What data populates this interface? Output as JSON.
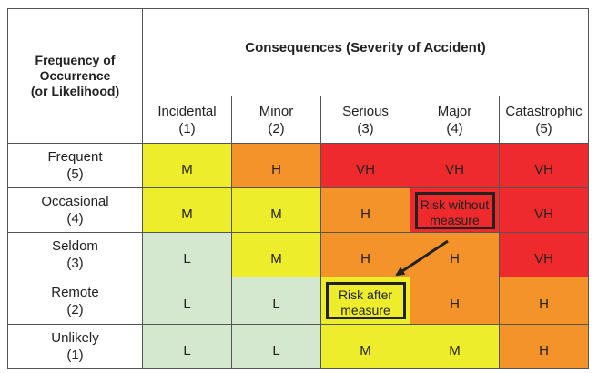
{
  "header": {
    "frequency_title": [
      "Frequency of",
      "Occurrence",
      "(or Likelihood)"
    ],
    "consequences_title": "Consequences (Severity of Accident)"
  },
  "columns": [
    {
      "name": "Incidental",
      "code": "(1)"
    },
    {
      "name": "Minor",
      "code": "(2)"
    },
    {
      "name": "Serious",
      "code": "(3)"
    },
    {
      "name": "Major",
      "code": "(4)"
    },
    {
      "name": "Catastrophic",
      "code": "(5)"
    }
  ],
  "rows": [
    {
      "name": "Frequent",
      "code": "(5)",
      "cells": [
        "M",
        "H",
        "VH",
        "VH",
        "VH"
      ]
    },
    {
      "name": "Occasional",
      "code": "(4)",
      "cells": [
        "M",
        "M",
        "H",
        "",
        "VH"
      ]
    },
    {
      "name": "Seldom",
      "code": "(3)",
      "cells": [
        "L",
        "M",
        "H",
        "H",
        "VH"
      ]
    },
    {
      "name": "Remote",
      "code": "(2)",
      "cells": [
        "L",
        "L",
        "",
        "H",
        "H"
      ]
    },
    {
      "name": "Unlikely",
      "code": "(1)",
      "cells": [
        "L",
        "L",
        "M",
        "M",
        "H"
      ]
    }
  ],
  "annotations": {
    "without": [
      "Risk without",
      "measure"
    ],
    "after": [
      "Risk after",
      "measure"
    ]
  },
  "colors": {
    "L": "#d3e8cf",
    "M": "#eded2b",
    "H": "#f5932b",
    "VH": "#ee2a2c"
  },
  "cell_colors": [
    [
      "M",
      "H",
      "VH",
      "VH",
      "VH"
    ],
    [
      "M",
      "M",
      "H",
      "VH",
      "VH"
    ],
    [
      "L",
      "M",
      "H",
      "H",
      "VH"
    ],
    [
      "L",
      "L",
      "M",
      "H",
      "H"
    ],
    [
      "L",
      "L",
      "M",
      "M",
      "H"
    ]
  ]
}
